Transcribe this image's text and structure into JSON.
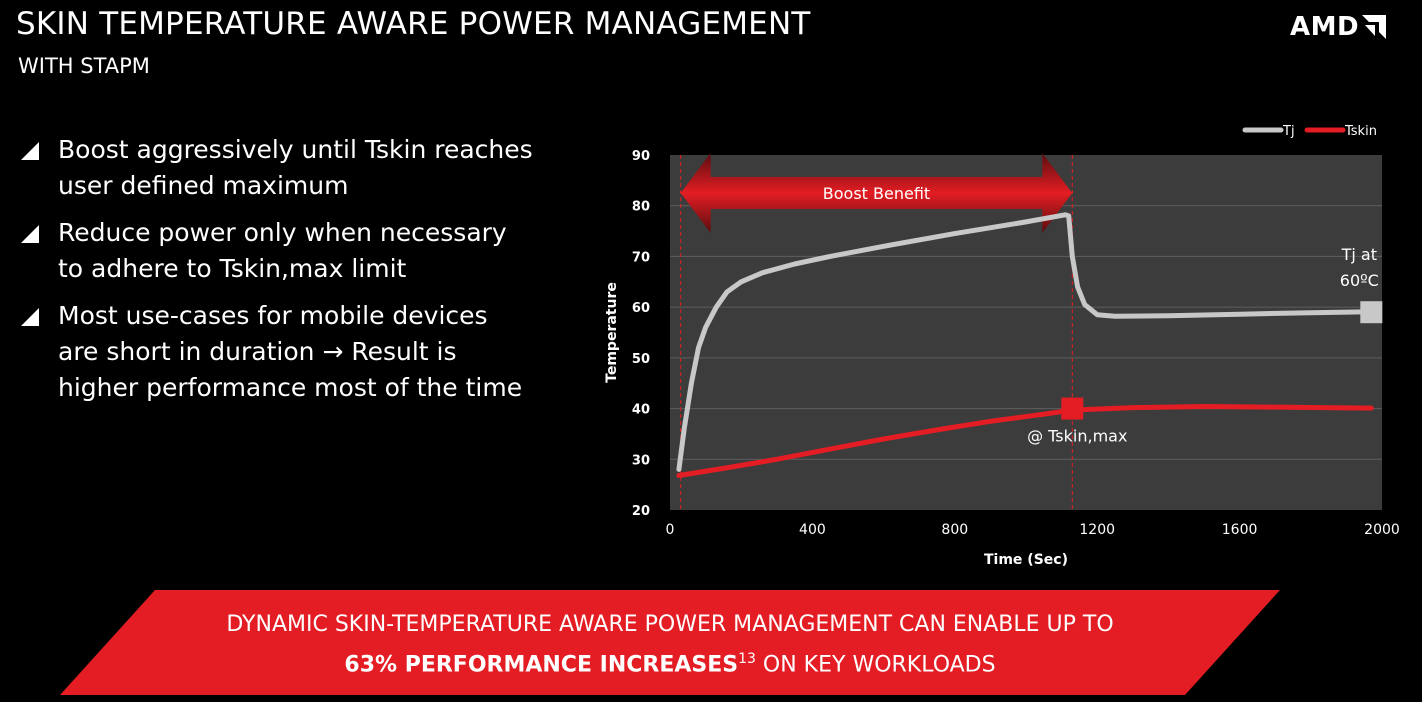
{
  "header": {
    "title": "SKIN TEMPERATURE AWARE POWER MANAGEMENT",
    "subtitle": "WITH STAPM",
    "logo_text": "AMD"
  },
  "bullets": [
    {
      "line1": "Boost aggressively until Tskin reaches",
      "line2": "user defined maximum"
    },
    {
      "line1": "Reduce power only when necessary",
      "line2": "to adhere to Tskin,max limit"
    },
    {
      "line1": "Most use-cases for mobile devices",
      "line2": "are short in duration → Result is",
      "line3": "higher performance most of the time"
    }
  ],
  "chart_data": {
    "type": "line",
    "xlabel": "Time (Sec)",
    "ylabel": "Temperature",
    "xlim": [
      0,
      2000
    ],
    "ylim": [
      20,
      90
    ],
    "x_ticks": [
      0,
      400,
      800,
      1200,
      1600,
      2000
    ],
    "y_ticks": [
      20,
      30,
      40,
      50,
      60,
      70,
      80,
      90
    ],
    "grid": true,
    "legend": "top-right",
    "series": [
      {
        "name": "Tj",
        "color": "#c8c8c8",
        "points": [
          [
            25,
            28
          ],
          [
            40,
            36
          ],
          [
            60,
            45
          ],
          [
            80,
            52
          ],
          [
            100,
            56
          ],
          [
            130,
            60
          ],
          [
            160,
            63
          ],
          [
            200,
            65
          ],
          [
            260,
            66.8
          ],
          [
            350,
            68.5
          ],
          [
            450,
            70
          ],
          [
            600,
            72
          ],
          [
            800,
            74.5
          ],
          [
            1000,
            76.8
          ],
          [
            1110,
            78.2
          ],
          [
            1120,
            78
          ],
          [
            1130,
            70
          ],
          [
            1145,
            64
          ],
          [
            1165,
            60.5
          ],
          [
            1200,
            58.5
          ],
          [
            1250,
            58.2
          ],
          [
            1400,
            58.3
          ],
          [
            1600,
            58.6
          ],
          [
            1800,
            58.9
          ],
          [
            1970,
            59.1
          ]
        ]
      },
      {
        "name": "Tskin",
        "color": "#e31d23",
        "points": [
          [
            25,
            26.8
          ],
          [
            150,
            28.2
          ],
          [
            300,
            30
          ],
          [
            450,
            32
          ],
          [
            600,
            34
          ],
          [
            750,
            35.8
          ],
          [
            900,
            37.5
          ],
          [
            1050,
            38.9
          ],
          [
            1130,
            39.7
          ],
          [
            1300,
            40.2
          ],
          [
            1500,
            40.4
          ],
          [
            1700,
            40.3
          ],
          [
            1970,
            40.1
          ]
        ]
      }
    ],
    "markers": [
      {
        "series": "Tj",
        "x": 1970,
        "y": 59,
        "color": "#c8c8c8"
      },
      {
        "series": "Tskin",
        "x": 1130,
        "y": 40,
        "color": "#e31d23"
      }
    ],
    "vlines": [
      30,
      1130
    ],
    "boost_range": [
      30,
      1130
    ],
    "annotations": {
      "boost": "Boost Benefit",
      "tj_line1": "Tj at",
      "tj_line2": "60ºC",
      "tskin": "@ Tskin,max"
    }
  },
  "banner": {
    "line1": "DYNAMIC SKIN-TEMPERATURE AWARE POWER MANAGEMENT CAN ENABLE UP TO",
    "bold": "63% PERFORMANCE INCREASES",
    "sup": "13",
    "rest": " ON KEY WORKLOADS",
    "color": "#e31d23"
  }
}
